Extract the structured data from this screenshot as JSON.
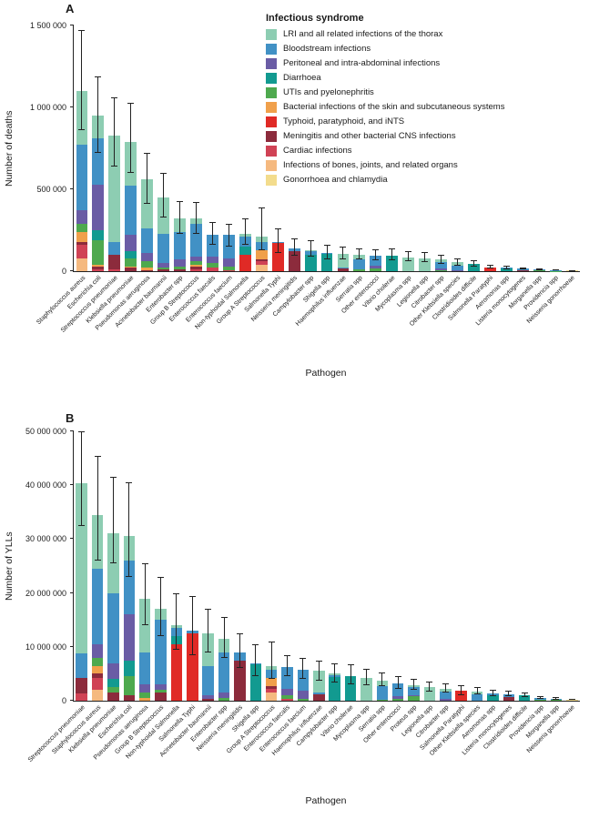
{
  "panels": {
    "a": {
      "letter": "A",
      "ylabel": "Number of deaths",
      "xlabel": "Pathogen"
    },
    "b": {
      "letter": "B",
      "ylabel": "Number of YLLs",
      "xlabel": "Pathogen"
    }
  },
  "legend": {
    "title": "Infectious syndrome",
    "items": [
      {
        "label": "LRI and all related infections of the thorax",
        "color": "#8DCDB2"
      },
      {
        "label": "Bloodstream infections",
        "color": "#4191C5"
      },
      {
        "label": "Peritoneal and intra-abdominal infections",
        "color": "#6A5CA5"
      },
      {
        "label": "Diarrhoea",
        "color": "#129A90"
      },
      {
        "label": "UTIs and pyelonephritis",
        "color": "#4EA94E"
      },
      {
        "label": "Bacterial infections of the skin and subcutaneous systems",
        "color": "#F0A04B"
      },
      {
        "label": "Typhoid, paratyphoid, and iNTS",
        "color": "#E02A26"
      },
      {
        "label": "Meningitis and other bacterial CNS infections",
        "color": "#8C2B3C"
      },
      {
        "label": "Cardiac infections",
        "color": "#D04255"
      },
      {
        "label": "Infections of bones, joints, and related organs",
        "color": "#F5B97F"
      },
      {
        "label": "Gonorrhoea and chlamydia",
        "color": "#F3DC8C"
      }
    ]
  },
  "chart_data": [
    {
      "panel": "A",
      "type": "bar",
      "stacked": true,
      "xlabel": "Pathogen",
      "ylabel": "Number of deaths",
      "ylim": [
        0,
        1500000
      ],
      "yticks": [
        0,
        500000,
        1000000,
        1500000
      ],
      "ytick_labels": [
        "0",
        "500 000",
        "1 000 000",
        "1 500 000"
      ],
      "legend_position": "upper-right",
      "grid": false,
      "series_names": [
        "LRI and all related infections of the thorax",
        "Bloodstream infections",
        "Peritoneal and intra-abdominal infections",
        "Diarrhoea",
        "UTIs and pyelonephritis",
        "Bacterial infections of the skin and subcutaneous systems",
        "Typhoid, paratyphoid, and iNTS",
        "Meningitis and other bacterial CNS infections",
        "Cardiac infections",
        "Infections of bones, joints, and related organs",
        "Gonorrhoea and chlamydia"
      ],
      "categories": [
        "Staphylococcus aureus",
        "Escherichia coli",
        "Streptococcus pneumoniae",
        "Klebsiella pneumoniae",
        "Pseudomonas aeruginosa",
        "Acinetobacter baumannii",
        "Enterobacter spp",
        "Group B Streptococcus",
        "Enterococcus faecalis",
        "Enterococcus faecium",
        "Non-typhoidal Salmonella",
        "Group A Streptococcus",
        "Salmonella Typhi",
        "Neisseria meningitidis",
        "Campylobacter spp",
        "Shigella spp",
        "Haemophilus influenzae",
        "Serratia spp",
        "Other enterococci",
        "Vibrio cholerae",
        "Mycoplasma spp",
        "Legionella spp",
        "Citrobacter spp",
        "Other Klebsiella species",
        "Clostridioides difficile",
        "Salmonella Paratyphi",
        "Aeromonas spp",
        "Listeria monocytogenes",
        "Morganella spp",
        "Providencia spp",
        "Neisseria gonorrhoeae"
      ],
      "values": [
        [
          330000,
          400000,
          80000,
          0,
          50000,
          60000,
          0,
          20000,
          80000,
          80000,
          0
        ],
        [
          140000,
          280000,
          280000,
          60000,
          150000,
          10000,
          0,
          20000,
          10000,
          0,
          0
        ],
        [
          650000,
          80000,
          0,
          0,
          0,
          0,
          0,
          90000,
          10000,
          0,
          0
        ],
        [
          270000,
          300000,
          100000,
          40000,
          50000,
          5000,
          0,
          25000,
          0,
          0,
          0
        ],
        [
          300000,
          150000,
          50000,
          0,
          40000,
          15000,
          0,
          5000,
          0,
          0,
          0
        ],
        [
          220000,
          180000,
          30000,
          0,
          10000,
          0,
          0,
          10000,
          0,
          0,
          0
        ],
        [
          80000,
          170000,
          40000,
          0,
          20000,
          0,
          0,
          10000,
          0,
          0,
          0
        ],
        [
          30000,
          200000,
          30000,
          0,
          20000,
          10000,
          0,
          20000,
          10000,
          0,
          0
        ],
        [
          0,
          130000,
          40000,
          0,
          30000,
          0,
          0,
          0,
          20000,
          0,
          0
        ],
        [
          0,
          140000,
          50000,
          0,
          25000,
          0,
          0,
          0,
          5000,
          0,
          0
        ],
        [
          20000,
          60000,
          0,
          50000,
          0,
          0,
          100000,
          0,
          0,
          0,
          0
        ],
        [
          30000,
          50000,
          0,
          0,
          0,
          60000,
          0,
          10000,
          20000,
          40000,
          0
        ],
        [
          0,
          10000,
          0,
          0,
          0,
          0,
          170000,
          0,
          0,
          0,
          0
        ],
        [
          0,
          20000,
          0,
          0,
          0,
          0,
          0,
          120000,
          0,
          0,
          0
        ],
        [
          10000,
          20000,
          0,
          100000,
          0,
          0,
          0,
          0,
          0,
          0,
          0
        ],
        [
          0,
          5000,
          0,
          105000,
          0,
          0,
          0,
          0,
          0,
          0,
          0
        ],
        [
          80000,
          10000,
          0,
          0,
          0,
          0,
          0,
          15000,
          0,
          0,
          0
        ],
        [
          30000,
          60000,
          0,
          0,
          10000,
          0,
          0,
          0,
          0,
          0,
          0
        ],
        [
          0,
          60000,
          20000,
          0,
          15000,
          0,
          0,
          0,
          0,
          0,
          0
        ],
        [
          0,
          0,
          0,
          95000,
          0,
          0,
          0,
          0,
          0,
          0,
          0
        ],
        [
          85000,
          0,
          0,
          0,
          0,
          0,
          0,
          0,
          0,
          0,
          0
        ],
        [
          80000,
          0,
          0,
          0,
          0,
          0,
          0,
          0,
          0,
          0,
          0
        ],
        [
          15000,
          40000,
          10000,
          0,
          5000,
          0,
          0,
          0,
          0,
          0,
          0
        ],
        [
          20000,
          30000,
          5000,
          0,
          0,
          0,
          0,
          0,
          0,
          0,
          0
        ],
        [
          0,
          0,
          0,
          45000,
          0,
          0,
          0,
          0,
          0,
          0,
          0
        ],
        [
          0,
          0,
          0,
          0,
          0,
          0,
          25000,
          0,
          0,
          0,
          0
        ],
        [
          0,
          5000,
          0,
          15000,
          0,
          0,
          0,
          0,
          0,
          0,
          0
        ],
        [
          0,
          8000,
          0,
          0,
          0,
          0,
          0,
          8000,
          0,
          0,
          0
        ],
        [
          0,
          7000,
          0,
          0,
          3000,
          0,
          0,
          0,
          0,
          0,
          0
        ],
        [
          0,
          5000,
          0,
          0,
          2000,
          0,
          0,
          0,
          0,
          0,
          0
        ],
        [
          0,
          0,
          0,
          0,
          0,
          0,
          0,
          0,
          0,
          0,
          4000
        ]
      ],
      "ci_low": [
        860000,
        720000,
        640000,
        600000,
        410000,
        330000,
        230000,
        230000,
        160000,
        150000,
        160000,
        130000,
        110000,
        95000,
        90000,
        70000,
        75000,
        70000,
        65000,
        65000,
        60000,
        55000,
        45000,
        35000,
        30000,
        15000,
        12000,
        10000,
        6000,
        4000,
        2000
      ],
      "ci_high": [
        1470000,
        1190000,
        1060000,
        1030000,
        720000,
        600000,
        430000,
        420000,
        300000,
        290000,
        320000,
        390000,
        260000,
        200000,
        190000,
        160000,
        150000,
        140000,
        135000,
        140000,
        125000,
        115000,
        100000,
        80000,
        65000,
        40000,
        32000,
        25000,
        16000,
        11000,
        7000
      ]
    },
    {
      "panel": "B",
      "type": "bar",
      "stacked": true,
      "xlabel": "Pathogen",
      "ylabel": "Number of YLLs",
      "ylim": [
        0,
        50000000
      ],
      "yticks": [
        0,
        10000000,
        20000000,
        30000000,
        40000000,
        50000000
      ],
      "ytick_labels": [
        "0",
        "10 000 000",
        "20 000 000",
        "30 000 000",
        "40 000 000",
        "50 000 000"
      ],
      "legend_position": "none",
      "grid": false,
      "series_names": [
        "LRI and all related infections of the thorax",
        "Bloodstream infections",
        "Peritoneal and intra-abdominal infections",
        "Diarrhoea",
        "UTIs and pyelonephritis",
        "Bacterial infections of the skin and subcutaneous systems",
        "Typhoid, paratyphoid, and iNTS",
        "Meningitis and other bacterial CNS infections",
        "Cardiac infections",
        "Infections of bones, joints, and related organs",
        "Gonorrhoea and chlamydia"
      ],
      "categories": [
        "Streptococcus pneumoniae",
        "Staphylococcus aureus",
        "Klebsiella pneumoniae",
        "Escherichia coli",
        "Pseudomonas aeruginosa",
        "Group B Streptococcus",
        "Non-typhoidal Salmonella",
        "Salmonella Typhi",
        "Acinetobacter baumannii",
        "Enterobacter spp",
        "Neisseria meningitidis",
        "Shigella spp",
        "Group A Streptococcus",
        "Enterococcus faecalis",
        "Enterococcus faecium",
        "Haemophilus influenzae",
        "Campylobacter spp",
        "Vibrio cholerae",
        "Mycoplasma spp",
        "Serratia spp",
        "Other enterococci",
        "Proteus spp",
        "Legionella spp",
        "Citrobacter spp",
        "Salmonella Paratyphi",
        "Other Klebsiella species",
        "Aeromonas spp",
        "Listeria monocytogenes",
        "Clostridioides difficile",
        "Providencia spp",
        "Morganella spp",
        "Neisseria gonorrhoeae"
      ],
      "values": [
        [
          31500000,
          4500000,
          0,
          0,
          0,
          0,
          0,
          3000000,
          1300000,
          0,
          0
        ],
        [
          10000000,
          14000000,
          2500000,
          0,
          1500000,
          1500000,
          0,
          800000,
          2200000,
          2000000,
          0
        ],
        [
          11000000,
          13000000,
          3000000,
          1500000,
          1000000,
          0,
          0,
          1500000,
          0,
          0,
          0
        ],
        [
          4500000,
          10000000,
          8500000,
          3000000,
          3500000,
          0,
          0,
          1000000,
          0,
          0,
          0
        ],
        [
          10000000,
          6000000,
          1500000,
          0,
          1000000,
          500000,
          0,
          0,
          0,
          0,
          0
        ],
        [
          2000000,
          12000000,
          1000000,
          0,
          500000,
          0,
          0,
          1500000,
          0,
          0,
          0
        ],
        [
          500000,
          1500000,
          0,
          1500000,
          0,
          0,
          10500000,
          0,
          0,
          0,
          0
        ],
        [
          0,
          500000,
          0,
          0,
          0,
          0,
          12500000,
          0,
          0,
          0,
          0
        ],
        [
          6000000,
          5500000,
          700000,
          0,
          0,
          0,
          0,
          300000,
          0,
          0,
          0
        ],
        [
          2500000,
          7500000,
          1000000,
          0,
          500000,
          0,
          0,
          0,
          0,
          0,
          0
        ],
        [
          0,
          1500000,
          0,
          0,
          0,
          0,
          0,
          7500000,
          0,
          0,
          0
        ],
        [
          0,
          200000,
          0,
          6800000,
          0,
          0,
          0,
          0,
          0,
          0,
          0
        ],
        [
          800000,
          1500000,
          0,
          0,
          0,
          1500000,
          0,
          500000,
          700000,
          1500000,
          0
        ],
        [
          0,
          4000000,
          1200000,
          0,
          600000,
          0,
          0,
          0,
          400000,
          0,
          0
        ],
        [
          0,
          4000000,
          1400000,
          0,
          400000,
          0,
          0,
          0,
          0,
          0,
          0
        ],
        [
          4000000,
          300000,
          0,
          0,
          0,
          0,
          0,
          1200000,
          0,
          0,
          0
        ],
        [
          200000,
          400000,
          0,
          4400000,
          0,
          0,
          0,
          0,
          0,
          0,
          0
        ],
        [
          0,
          0,
          0,
          4500000,
          0,
          0,
          0,
          0,
          0,
          0,
          0
        ],
        [
          4200000,
          0,
          0,
          0,
          0,
          0,
          0,
          0,
          0,
          0,
          0
        ],
        [
          1100000,
          2500000,
          0,
          0,
          200000,
          0,
          0,
          0,
          0,
          0,
          0
        ],
        [
          0,
          2400000,
          500000,
          0,
          300000,
          0,
          0,
          0,
          0,
          0,
          0
        ],
        [
          200000,
          1500000,
          300000,
          0,
          800000,
          0,
          0,
          0,
          0,
          0,
          0
        ],
        [
          2500000,
          0,
          0,
          0,
          0,
          0,
          0,
          0,
          0,
          0,
          0
        ],
        [
          500000,
          1400000,
          300000,
          0,
          0,
          0,
          0,
          0,
          0,
          0,
          0
        ],
        [
          0,
          0,
          0,
          0,
          0,
          0,
          1800000,
          0,
          0,
          0,
          0
        ],
        [
          600000,
          1100000,
          0,
          0,
          0,
          0,
          0,
          0,
          0,
          0,
          0
        ],
        [
          0,
          300000,
          0,
          1100000,
          0,
          0,
          0,
          0,
          0,
          0,
          0
        ],
        [
          0,
          600000,
          0,
          0,
          0,
          0,
          0,
          600000,
          0,
          0,
          0
        ],
        [
          0,
          0,
          0,
          1000000,
          0,
          0,
          0,
          0,
          0,
          0,
          0
        ],
        [
          0,
          300000,
          0,
          0,
          200000,
          0,
          0,
          0,
          0,
          0,
          0
        ],
        [
          0,
          300000,
          0,
          0,
          100000,
          0,
          0,
          0,
          0,
          0,
          0
        ],
        [
          0,
          0,
          0,
          0,
          0,
          0,
          0,
          0,
          0,
          0,
          200000
        ]
      ],
      "ci_low": [
        32500000,
        26000000,
        25500000,
        23000000,
        14000000,
        12000000,
        9500000,
        8500000,
        9000000,
        8000000,
        6000000,
        4500000,
        4000000,
        4500000,
        4000000,
        3800000,
        3400000,
        3000000,
        2800000,
        2700000,
        2200000,
        2000000,
        1700000,
        1500000,
        1100000,
        1200000,
        900000,
        800000,
        700000,
        300000,
        250000,
        100000
      ],
      "ci_high": [
        50000000,
        45500000,
        41500000,
        40500000,
        25500000,
        23000000,
        20000000,
        19500000,
        17000000,
        15500000,
        12500000,
        10500000,
        11000000,
        8500000,
        8000000,
        7500000,
        7000000,
        6800000,
        6000000,
        5200000,
        4500000,
        4000000,
        3500000,
        3200000,
        2800000,
        2500000,
        2100000,
        1800000,
        1500000,
        900000,
        700000,
        400000
      ]
    }
  ]
}
